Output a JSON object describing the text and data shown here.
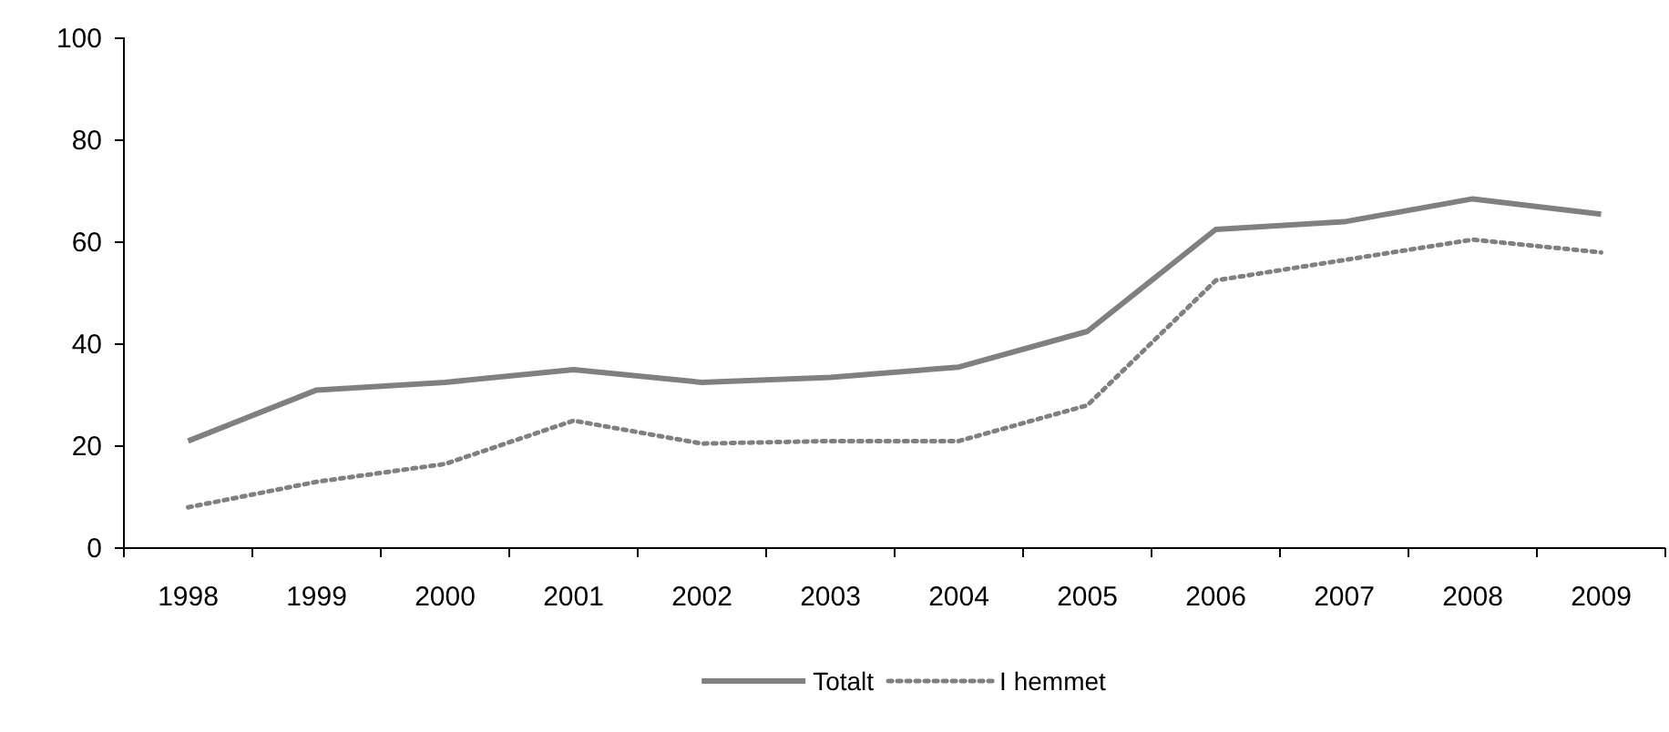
{
  "chart_data": {
    "type": "line",
    "categories": [
      "1998",
      "1999",
      "2000",
      "2001",
      "2002",
      "2003",
      "2004",
      "2005",
      "2006",
      "2007",
      "2008",
      "2009"
    ],
    "series": [
      {
        "name": "Totalt",
        "color": "#808080",
        "line_style": "solid",
        "values": [
          21,
          31,
          32.5,
          35,
          32.5,
          33.5,
          35.5,
          42.5,
          62.5,
          64,
          68.5,
          65.5
        ]
      },
      {
        "name": "I hemmet",
        "color": "#808080",
        "line_style": "dotted",
        "values": [
          8,
          13,
          16.5,
          25,
          20.5,
          21,
          21,
          28,
          52.5,
          56.5,
          60.5,
          58
        ]
      }
    ],
    "ylim": [
      0,
      100
    ],
    "yticks": [
      0,
      20,
      40,
      60,
      80,
      100
    ],
    "grid": false,
    "legend": "bottom",
    "marker": "none"
  }
}
